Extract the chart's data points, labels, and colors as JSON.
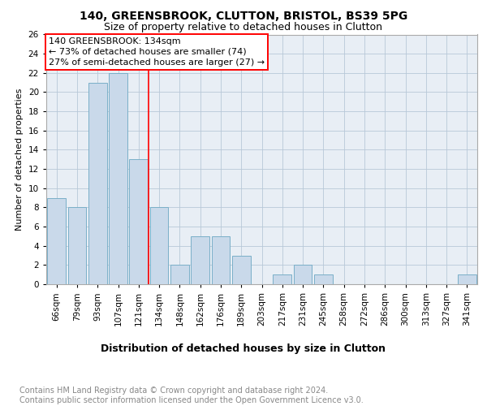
{
  "title": "140, GREENSBROOK, CLUTTON, BRISTOL, BS39 5PG",
  "subtitle": "Size of property relative to detached houses in Clutton",
  "xlabel": "Distribution of detached houses by size in Clutton",
  "ylabel": "Number of detached properties",
  "categories": [
    "66sqm",
    "79sqm",
    "93sqm",
    "107sqm",
    "121sqm",
    "134sqm",
    "148sqm",
    "162sqm",
    "176sqm",
    "189sqm",
    "203sqm",
    "217sqm",
    "231sqm",
    "245sqm",
    "258sqm",
    "272sqm",
    "286sqm",
    "300sqm",
    "313sqm",
    "327sqm",
    "341sqm"
  ],
  "values": [
    9,
    8,
    21,
    22,
    13,
    8,
    2,
    5,
    5,
    3,
    0,
    1,
    2,
    1,
    0,
    0,
    0,
    0,
    0,
    0,
    1
  ],
  "bar_color": "#c9d9ea",
  "bar_edge_color": "#7aafc8",
  "red_line_after_index": 4,
  "annotation_text": "140 GREENSBROOK: 134sqm\n← 73% of detached houses are smaller (74)\n27% of semi-detached houses are larger (27) →",
  "ylim": [
    0,
    26
  ],
  "yticks": [
    0,
    2,
    4,
    6,
    8,
    10,
    12,
    14,
    16,
    18,
    20,
    22,
    24,
    26
  ],
  "plot_bg_color": "#e8eef5",
  "grid_color": "#b8c8d8",
  "title_fontsize": 10,
  "subtitle_fontsize": 9,
  "xlabel_fontsize": 9,
  "ylabel_fontsize": 8,
  "tick_fontsize": 7.5,
  "annotation_fontsize": 8,
  "footer_fontsize": 7,
  "footer_text": "Contains HM Land Registry data © Crown copyright and database right 2024.\nContains public sector information licensed under the Open Government Licence v3.0."
}
